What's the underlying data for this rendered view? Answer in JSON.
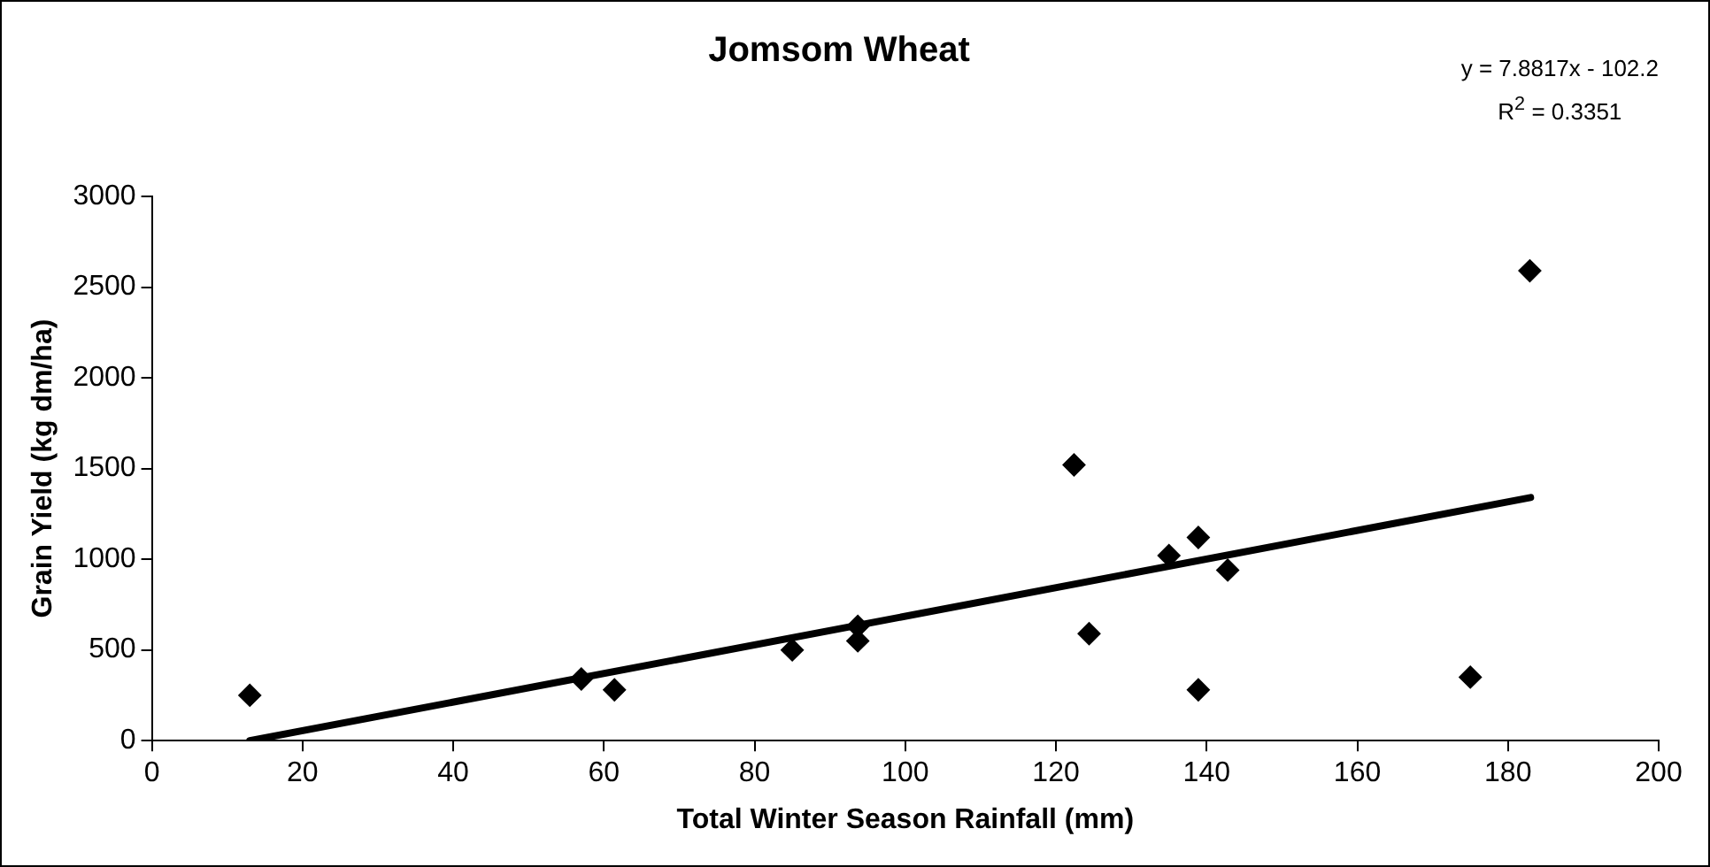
{
  "chart_data": {
    "type": "scatter",
    "title": "Jomsom Wheat",
    "xlabel": "Total Winter Season Rainfall (mm)",
    "ylabel": "Grain Yield (kg dm/ha)",
    "annotations": [
      "y = 7.8817x - 102.2",
      "R$^{2}$ = 0.3351"
    ],
    "series": [
      {
        "type": "scatter",
        "color": "#000000",
        "marker": "diamond",
        "x": [
          13,
          57,
          61.4,
          85,
          93.7,
          93.7,
          122.4,
          124.4,
          135,
          138.9,
          138.9,
          142.8,
          175,
          182.9
        ],
        "values": [
          250,
          340,
          280,
          500,
          630,
          550,
          1520,
          590,
          1020,
          1120,
          280,
          940,
          350,
          2590
        ]
      },
      {
        "type": "line",
        "color": "#000000",
        "marker": "none",
        "x": [
          13,
          183
        ],
        "values": [
          0,
          1340
        ]
      }
    ],
    "xlim": [
      0,
      200
    ],
    "xticks": [
      0,
      20,
      40,
      60,
      80,
      100,
      120,
      140,
      160,
      180,
      200
    ],
    "ylim": [
      0,
      3000
    ],
    "yticks": [
      0,
      500,
      1000,
      1500,
      2000,
      2500,
      3000
    ],
    "grid": false,
    "legend": false
  }
}
